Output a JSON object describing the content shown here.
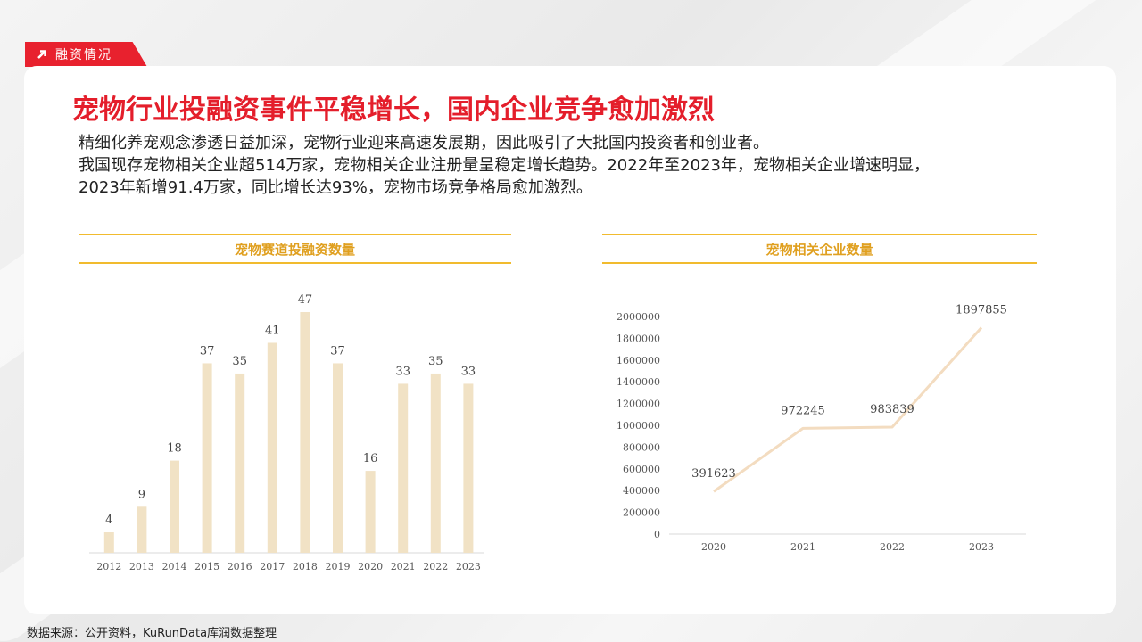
{
  "section_tag": "融资情况",
  "title": "宠物行业投融资事件平稳增长，国内企业竞争愈加激烈",
  "description": [
    "精细化养宠观念渗透日益加深，宠物行业迎来高速发展期，因此吸引了大批国内投资者和创业者。",
    "我国现存宠物相关企业超514万家，宠物相关企业注册量呈稳定增长趋势。2022年至2023年，宠物相关企业增速明显，",
    "2023年新增91.4万家，同比增长达93%，宠物市场竞争格局愈加激烈。"
  ],
  "source": "数据来源：公开资料，KuRunData库润数据整理",
  "colors": {
    "accent": "#e41e2b",
    "bar": "#f1e2c5",
    "line": "#f3dcc0",
    "title_gold": "#e0a020"
  },
  "chart_data": [
    {
      "type": "bar",
      "title": "宠物赛道投融资数量",
      "categories": [
        "2012",
        "2013",
        "2014",
        "2015",
        "2016",
        "2017",
        "2018",
        "2019",
        "2020",
        "2021",
        "2022",
        "2023"
      ],
      "values": [
        4,
        9,
        18,
        37,
        35,
        41,
        47,
        37,
        16,
        33,
        35,
        33
      ],
      "ylim": [
        0,
        47
      ],
      "grid": false
    },
    {
      "type": "line",
      "title": "宠物相关企业数量",
      "categories": [
        "2020",
        "2021",
        "2022",
        "2023"
      ],
      "values": [
        391623,
        972245,
        983839,
        1897855
      ],
      "ylim": [
        0,
        2000000
      ],
      "yticks": [
        "0",
        "200000",
        "400000",
        "600000",
        "800000",
        "1000000",
        "1200000",
        "1400000",
        "1600000",
        "1800000",
        "2000000"
      ],
      "grid": false
    }
  ]
}
